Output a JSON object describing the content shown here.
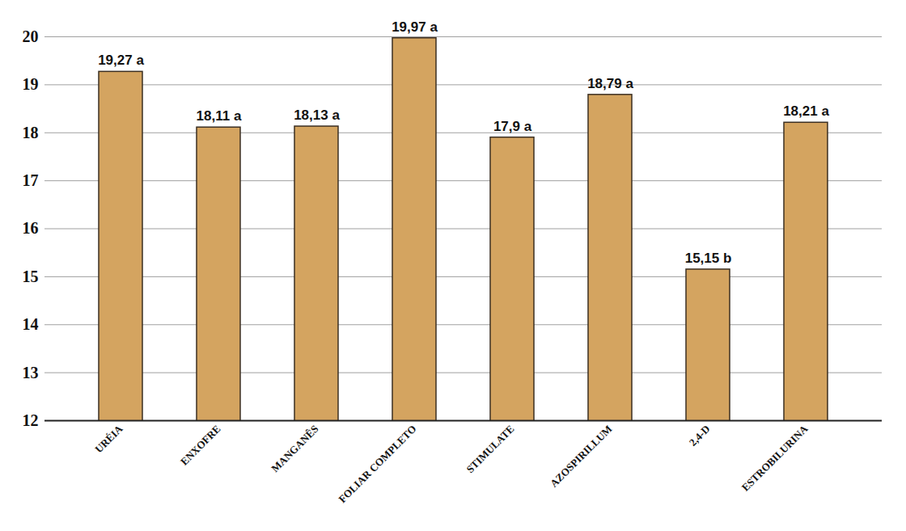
{
  "chart_data": {
    "type": "bar",
    "categories": [
      "URÉIA",
      "ENXOFRE",
      "MANGANÊS",
      "FOLIAR COMPLETO",
      "STIMULATE",
      "AZOSPIRILLUM",
      "2,4-D",
      "ESTROBILURINA"
    ],
    "values": [
      19.27,
      18.11,
      18.13,
      19.97,
      17.9,
      18.79,
      15.15,
      18.21
    ],
    "value_labels": [
      "19,27 a",
      "18,11 a",
      "18,13 a",
      "19,97 a",
      "17,9 a",
      "18,79 a",
      "15,15 b",
      "18,21 a"
    ],
    "color": "#d4a460",
    "ylim": [
      12,
      20
    ],
    "yticks": [
      12,
      13,
      14,
      15,
      16,
      17,
      18,
      19,
      20
    ],
    "grid": true,
    "data_labels": true
  }
}
